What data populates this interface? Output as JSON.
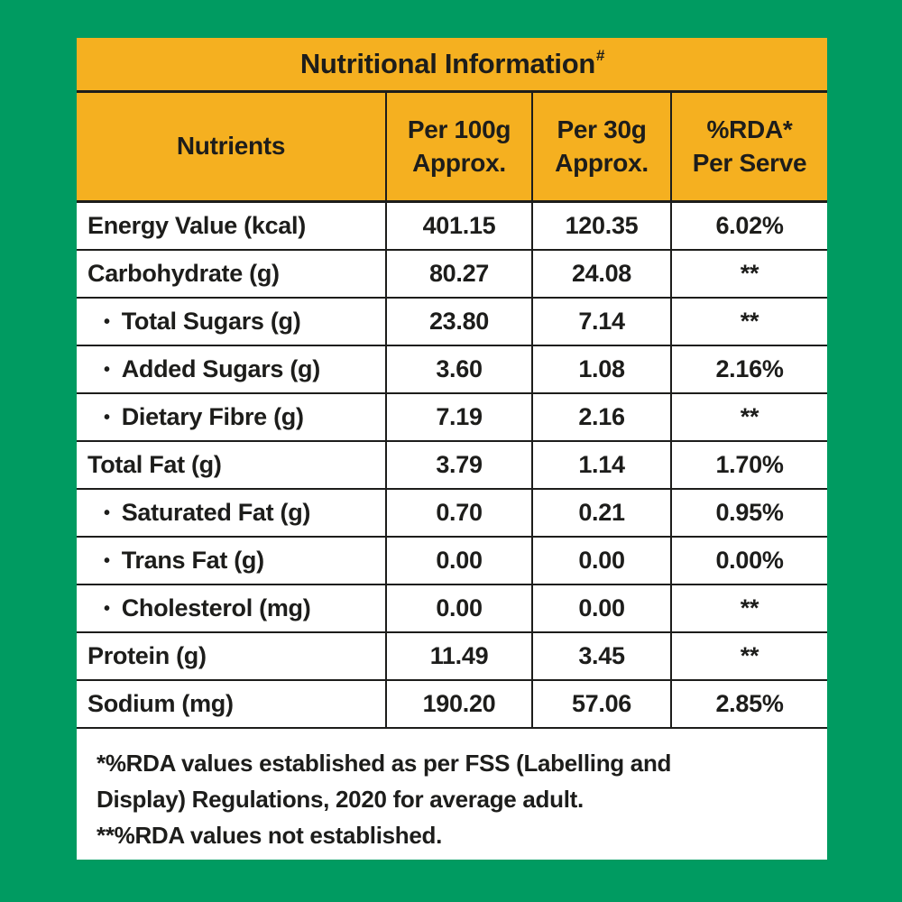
{
  "page": {
    "background_color": "#009B61",
    "header_color": "#F5B020",
    "line_color": "#1d1d1b"
  },
  "table": {
    "title": "Nutritional Information",
    "title_superscript": "#",
    "bullet": "•",
    "columns": [
      "Nutrients",
      "Per 100g\nApprox.",
      "Per 30g\nApprox.",
      "%RDA*\nPer Serve"
    ],
    "rows": [
      {
        "label": "Energy Value (kcal)",
        "sub": false,
        "per_100g": "401.15",
        "per_30g": "120.35",
        "rda_per_serve": "6.02%"
      },
      {
        "label": "Carbohydrate (g)",
        "sub": false,
        "per_100g": "80.27",
        "per_30g": "24.08",
        "rda_per_serve": "**"
      },
      {
        "label": "Total Sugars (g)",
        "sub": true,
        "per_100g": "23.80",
        "per_30g": "7.14",
        "rda_per_serve": "**"
      },
      {
        "label": "Added Sugars (g)",
        "sub": true,
        "per_100g": "3.60",
        "per_30g": "1.08",
        "rda_per_serve": "2.16%"
      },
      {
        "label": "Dietary Fibre (g)",
        "sub": true,
        "per_100g": "7.19",
        "per_30g": "2.16",
        "rda_per_serve": "**"
      },
      {
        "label": "Total Fat (g)",
        "sub": false,
        "per_100g": "3.79",
        "per_30g": "1.14",
        "rda_per_serve": "1.70%"
      },
      {
        "label": "Saturated Fat (g)",
        "sub": true,
        "per_100g": "0.70",
        "per_30g": "0.21",
        "rda_per_serve": "0.95%"
      },
      {
        "label": "Trans Fat (g)",
        "sub": true,
        "per_100g": "0.00",
        "per_30g": "0.00",
        "rda_per_serve": "0.00%"
      },
      {
        "label": "Cholesterol (mg)",
        "sub": true,
        "per_100g": "0.00",
        "per_30g": "0.00",
        "rda_per_serve": "**"
      },
      {
        "label": "Protein (g)",
        "sub": false,
        "per_100g": "11.49",
        "per_30g": "3.45",
        "rda_per_serve": "**"
      },
      {
        "label": "Sodium (mg)",
        "sub": false,
        "per_100g": "190.20",
        "per_30g": "57.06",
        "rda_per_serve": "2.85%"
      }
    ],
    "footnotes": [
      "*%RDA values established as per FSS (Labelling and\nDisplay) Regulations, 2020 for average adult.",
      "**%RDA values not established."
    ]
  }
}
